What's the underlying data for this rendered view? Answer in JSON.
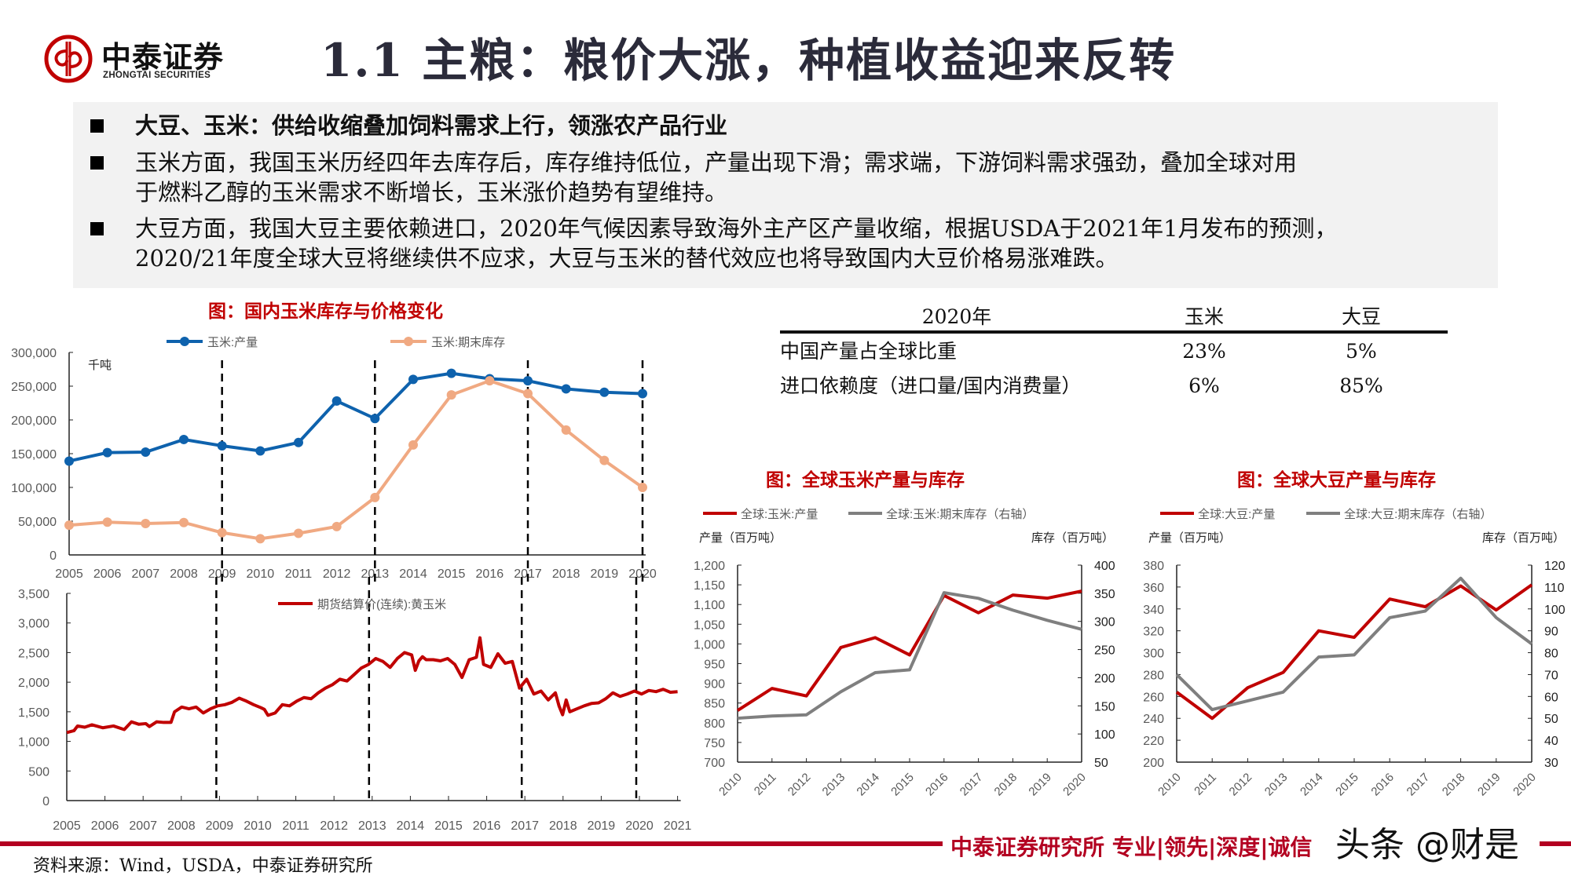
{
  "header": {
    "logo_cn": "中泰证券",
    "logo_en": "ZHONGTAI SECURITIES",
    "title": "1.1 主粮：粮价大涨，种植收益迎来反转",
    "brand_color": "#c00000"
  },
  "summary": {
    "bullets": [
      {
        "lines": [
          "大豆、玉米：供给收缩叠加饲料需求上行，领涨农产品行业"
        ],
        "bold": true
      },
      {
        "lines": [
          "玉米方面，我国玉米历经四年去库存后，库存维持低位，产量出现下滑；需求端，下游饲料需求强劲，叠加全球对用",
          "于燃料乙醇的玉米需求不断增长，玉米涨价趋势有望维持。"
        ],
        "bold": false
      },
      {
        "lines": [
          "大豆方面，我国大豆主要依赖进口，2020年气候因素导致海外主产区产量收缩，根据USDA于2021年1月发布的预测，",
          "2020/21年度全球大豆将继续供不应求，大豆与玉米的替代效应也将导致国内大豆价格易涨难跌。"
        ],
        "bold": false
      }
    ]
  },
  "table": {
    "headers": [
      "2020年",
      "玉米",
      "大豆"
    ],
    "rows": [
      [
        "中国产量占全球比重",
        "23%",
        "5%"
      ],
      [
        "进口依赖度（进口量/国内消费量）",
        "6%",
        "85%"
      ]
    ]
  },
  "chart_data": [
    {
      "id": "domestic-corn-stock",
      "type": "line",
      "title": "图：国内玉米库存与价格变化",
      "unit_label": "千吨",
      "x": [
        2005,
        2006,
        2007,
        2008,
        2009,
        2010,
        2011,
        2012,
        2013,
        2014,
        2015,
        2016,
        2017,
        2018,
        2019,
        2020
      ],
      "series": [
        {
          "name": "玉米:产量",
          "color": "#0e62ad",
          "values": [
            139000,
            151600,
            152300,
            171000,
            161600,
            154100,
            166500,
            228000,
            202000,
            260000,
            269000,
            261000,
            258000,
            246000,
            241000,
            239000
          ]
        },
        {
          "name": "玉米:期末库存",
          "color": "#f0a982",
          "values": [
            44000,
            48500,
            46500,
            48000,
            33000,
            24000,
            32000,
            42000,
            85000,
            163000,
            237000,
            258000,
            239000,
            185000,
            140000,
            100000
          ]
        }
      ],
      "ylim": [
        0,
        300000
      ],
      "yticks": [
        "300,000",
        "250,000",
        "200,000",
        "150,000",
        "100,000",
        "50,000",
        "0"
      ],
      "dashed_lines_at": [
        2009,
        2013,
        2017,
        2020
      ],
      "legend_position": "top"
    },
    {
      "id": "corn-futures-price",
      "type": "line",
      "title": "",
      "x_range": [
        2005,
        2021
      ],
      "xticks": [
        "2005",
        "2006",
        "2007",
        "2008",
        "2009",
        "2010",
        "2011",
        "2012",
        "2013",
        "2014",
        "2015",
        "2016",
        "2017",
        "2018",
        "2019",
        "2020",
        "2021"
      ],
      "series": [
        {
          "name": "期货结算价(连续):黄玉米",
          "color": "#c00000",
          "points": [
            [
              2005.0,
              1150
            ],
            [
              2005.2,
              1180
            ],
            [
              2005.3,
              1260
            ],
            [
              2005.5,
              1240
            ],
            [
              2005.7,
              1280
            ],
            [
              2006.0,
              1230
            ],
            [
              2006.3,
              1260
            ],
            [
              2006.6,
              1200
            ],
            [
              2006.8,
              1330
            ],
            [
              2007.0,
              1290
            ],
            [
              2007.2,
              1300
            ],
            [
              2007.3,
              1250
            ],
            [
              2007.5,
              1330
            ],
            [
              2007.7,
              1320
            ],
            [
              2007.9,
              1320
            ],
            [
              2008.0,
              1500
            ],
            [
              2008.2,
              1580
            ],
            [
              2008.4,
              1550
            ],
            [
              2008.6,
              1580
            ],
            [
              2008.8,
              1480
            ],
            [
              2009.0,
              1550
            ],
            [
              2009.2,
              1600
            ],
            [
              2009.4,
              1620
            ],
            [
              2009.6,
              1660
            ],
            [
              2009.8,
              1730
            ],
            [
              2010.0,
              1680
            ],
            [
              2010.2,
              1620
            ],
            [
              2010.4,
              1570
            ],
            [
              2010.5,
              1540
            ],
            [
              2010.6,
              1440
            ],
            [
              2010.8,
              1480
            ],
            [
              2011.0,
              1620
            ],
            [
              2011.2,
              1600
            ],
            [
              2011.4,
              1680
            ],
            [
              2011.6,
              1740
            ],
            [
              2011.8,
              1720
            ],
            [
              2012.0,
              1820
            ],
            [
              2012.2,
              1900
            ],
            [
              2012.4,
              1960
            ],
            [
              2012.6,
              2050
            ],
            [
              2012.8,
              2020
            ],
            [
              2013.0,
              2130
            ],
            [
              2013.2,
              2240
            ],
            [
              2013.4,
              2300
            ],
            [
              2013.6,
              2400
            ],
            [
              2013.8,
              2350
            ],
            [
              2014.0,
              2250
            ],
            [
              2014.2,
              2400
            ],
            [
              2014.4,
              2500
            ],
            [
              2014.6,
              2460
            ],
            [
              2014.7,
              2200
            ],
            [
              2014.8,
              2360
            ],
            [
              2014.9,
              2430
            ],
            [
              2015.0,
              2380
            ],
            [
              2015.2,
              2380
            ],
            [
              2015.4,
              2360
            ],
            [
              2015.6,
              2400
            ],
            [
              2015.8,
              2300
            ],
            [
              2016.0,
              2080
            ],
            [
              2016.2,
              2380
            ],
            [
              2016.4,
              2420
            ],
            [
              2016.5,
              2750
            ],
            [
              2016.6,
              2300
            ],
            [
              2016.8,
              2250
            ],
            [
              2017.0,
              2480
            ],
            [
              2017.2,
              2320
            ],
            [
              2017.4,
              2350
            ],
            [
              2017.6,
              1900
            ],
            [
              2017.8,
              2050
            ],
            [
              2018.0,
              1800
            ],
            [
              2018.2,
              1850
            ],
            [
              2018.4,
              1700
            ],
            [
              2018.6,
              1820
            ],
            [
              2018.7,
              1600
            ],
            [
              2018.8,
              1450
            ],
            [
              2018.9,
              1700
            ],
            [
              2019.0,
              1500
            ],
            [
              2019.2,
              1550
            ],
            [
              2019.4,
              1600
            ],
            [
              2019.6,
              1640
            ],
            [
              2019.8,
              1650
            ],
            [
              2020.0,
              1720
            ],
            [
              2020.2,
              1820
            ],
            [
              2020.4,
              1760
            ],
            [
              2020.6,
              1800
            ],
            [
              2020.8,
              1850
            ],
            [
              2021.0,
              1800
            ],
            [
              2021.2,
              1860
            ],
            [
              2021.4,
              1840
            ],
            [
              2021.6,
              1880
            ],
            [
              2021.8,
              1830
            ],
            [
              2022.0,
              1840
            ]
          ]
        }
      ],
      "ylim": [
        0,
        3500
      ],
      "yticks": [
        "3,500",
        "3,000",
        "2,500",
        "2,000",
        "1,500",
        "1,000",
        "500",
        "0"
      ],
      "dashed_lines_at": [
        2009,
        2013,
        2017,
        2020
      ],
      "legend_position": "top"
    },
    {
      "id": "global-corn",
      "type": "line",
      "title": "图：全球玉米产量与库存",
      "ylabel": "产量（百万吨）",
      "ylabel_right": "库存（百万吨）",
      "x": [
        "2010",
        "2011",
        "2012",
        "2013",
        "2014",
        "2015",
        "2016",
        "2017",
        "2018",
        "2019",
        "2020"
      ],
      "series": [
        {
          "name": "全球:玉米:产量",
          "axis": "left",
          "color": "#c00000",
          "values": [
            831,
            887,
            868,
            991,
            1016,
            972,
            1123,
            1079,
            1124,
            1116,
            1134
          ]
        },
        {
          "name": "全球:玉米:期末库存（右轴）",
          "axis": "right",
          "color": "#7f7f7f",
          "values": [
            128,
            132,
            134,
            175,
            209,
            214,
            351,
            341,
            320,
            302,
            286
          ]
        }
      ],
      "ylim": [
        700,
        1200
      ],
      "ylim_right": [
        50,
        400
      ],
      "yticks": [
        "1,200",
        "1,150",
        "1,100",
        "1,050",
        "1,000",
        "950",
        "900",
        "850",
        "800",
        "750",
        "700"
      ],
      "yticks_right": [
        "400",
        "350",
        "300",
        "250",
        "200",
        "150",
        "100",
        "50"
      ],
      "legend_position": "top"
    },
    {
      "id": "global-soybean",
      "type": "line",
      "title": "图：全球大豆产量与库存",
      "ylabel": "产量（百万吨）",
      "ylabel_right": "库存（百万吨）",
      "x": [
        "2010",
        "2011",
        "2012",
        "2013",
        "2014",
        "2015",
        "2016",
        "2017",
        "2018",
        "2019",
        "2020"
      ],
      "series": [
        {
          "name": "全球:大豆:产量",
          "axis": "left",
          "color": "#c00000",
          "values": [
            264,
            240,
            268,
            282,
            320,
            314,
            349,
            342,
            361,
            339,
            362
          ]
        },
        {
          "name": "全球:大豆:期末库存（右轴）",
          "axis": "right",
          "color": "#7f7f7f",
          "values": [
            70,
            54,
            58,
            62,
            78,
            79,
            96,
            99,
            114,
            96,
            84
          ]
        }
      ],
      "ylim": [
        200,
        380
      ],
      "ylim_right": [
        30,
        120
      ],
      "yticks": [
        "380",
        "360",
        "340",
        "320",
        "300",
        "280",
        "260",
        "240",
        "220",
        "200"
      ],
      "yticks_right": [
        "120",
        "110",
        "100",
        "90",
        "80",
        "70",
        "60",
        "50",
        "40",
        "30"
      ],
      "legend_position": "top"
    }
  ],
  "footer": {
    "slogan": "中泰证券研究所 专业|领先|深度|诚信",
    "watermark": "头条 @财是",
    "source": "资料来源：Wind，USDA，中泰证券研究所"
  }
}
